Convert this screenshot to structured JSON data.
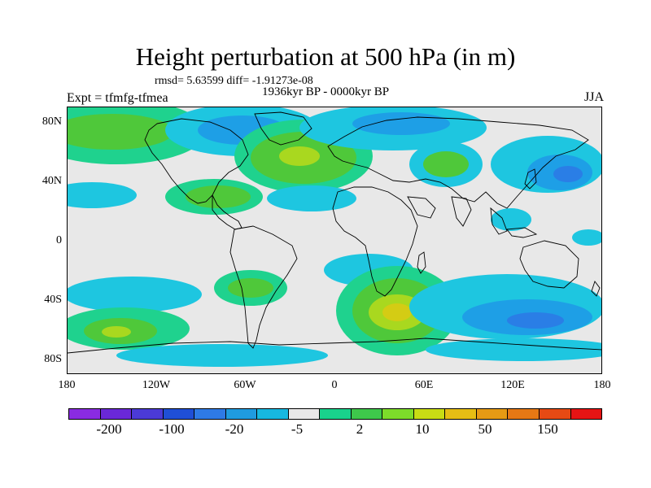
{
  "title": "Height perturbation at 500 hPa (in m)",
  "stats": "rmsd= 5.63599 diff= -1.91273e-08",
  "expt": "Expt = tfmfg-tfmea",
  "period": "1936kyr BP - 0000kyr BP",
  "season": "JJA",
  "lat_labels": [
    "80N",
    "40N",
    "0",
    "40S",
    "80S"
  ],
  "lon_labels": [
    "180",
    "120W",
    "60W",
    "0",
    "60E",
    "120E",
    "180"
  ],
  "colorbar": {
    "colors": [
      "#8a2be2",
      "#6a28d8",
      "#4b3ad6",
      "#1f4fd6",
      "#2e7ae6",
      "#1f9be0",
      "#17b8e0",
      "#e8e8e8",
      "#19d28c",
      "#3ec84b",
      "#7ddc2a",
      "#c8dc14",
      "#e6be14",
      "#e69a14",
      "#e67814",
      "#e64a14",
      "#e61414"
    ],
    "labels": [
      "-200",
      "-100",
      "-20",
      "-5",
      "2",
      "10",
      "50",
      "150"
    ]
  },
  "fill_colors": {
    "pos_light": "#1fd28e",
    "pos_mid": "#4fc83a",
    "pos_strong": "#a9d81f",
    "pos_peak": "#d4cc14",
    "neg_light": "#1ec6e0",
    "neg_mid": "#1e9fe6",
    "neg_strong": "#2a7ee6"
  }
}
